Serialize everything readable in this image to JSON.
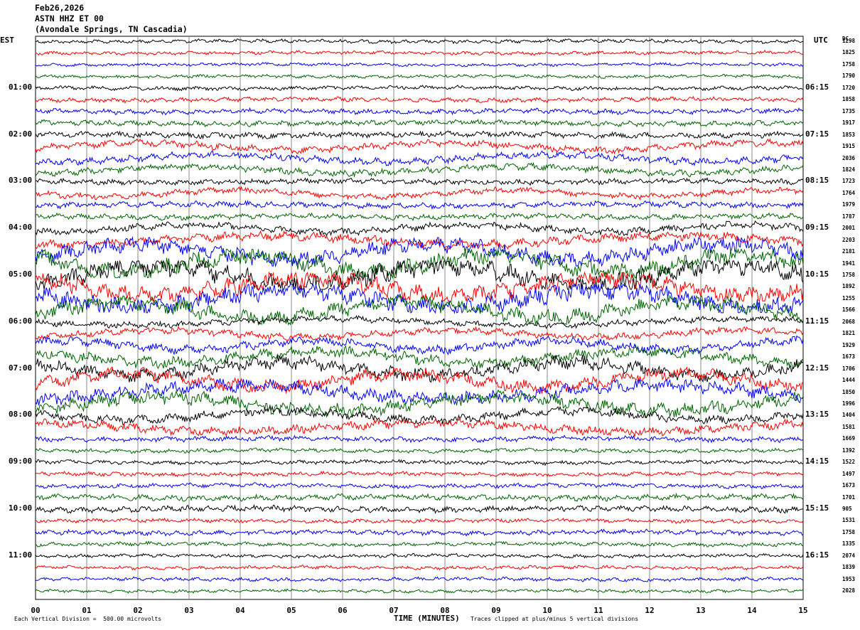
{
  "header": {
    "date": "Feb26,2026",
    "station": "ASTN HHZ ET 00",
    "location": "(Avondale Springs, TN Cascadia)"
  },
  "axes": {
    "left_tz": "EST",
    "right_tz": "UTC",
    "dc_label": "DC",
    "x_title": "TIME (MINUTES)",
    "footer_left": "Each Vertical Division =  500.00 microvolts",
    "footer_right": "Traces clipped at plus/minus 5 vertical divisions"
  },
  "chart_data": {
    "type": "line",
    "title": "ASTN HHZ ET 00",
    "xlabel": "TIME (MINUTES)",
    "xlim": [
      0,
      15
    ],
    "x_ticks": [
      "00",
      "01",
      "02",
      "03",
      "04",
      "05",
      "06",
      "07",
      "08",
      "09",
      "10",
      "11",
      "12",
      "13",
      "14",
      "15"
    ],
    "left_hour_labels": [
      "01:00",
      "02:00",
      "03:00",
      "04:00",
      "05:00",
      "06:00",
      "07:00",
      "08:00",
      "09:00",
      "10:00",
      "11:00"
    ],
    "right_hour_labels": [
      "06:15",
      "07:15",
      "08:15",
      "09:15",
      "10:15",
      "11:15",
      "12:15",
      "13:15",
      "14:15",
      "15:15",
      "16:15"
    ],
    "trace_colors": [
      "#000000",
      "#ff0000",
      "#0000ff",
      "#006400"
    ],
    "dc_offsets": [
      "1298",
      "1825",
      "1758",
      "1790",
      "1720",
      "1858",
      "1735",
      "1917",
      "1853",
      "1915",
      "2036",
      "1824",
      "1723",
      "1764",
      "1979",
      "1787",
      "2001",
      "2203",
      "2181",
      "1941",
      "1758",
      "1892",
      "1255",
      "1566",
      "2068",
      "1821",
      "1929",
      "1673",
      "1706",
      "1444",
      "1850",
      "1996",
      "1404",
      "1581",
      "1669",
      "1392",
      "1522",
      "1497",
      "1673",
      "1701",
      "905",
      "1531",
      "1758",
      "1335",
      "2074",
      "1839",
      "1953",
      "2028"
    ],
    "trace_amplitude_divisions": [
      0.8,
      0.8,
      0.7,
      0.7,
      0.9,
      1.0,
      1.1,
      1.2,
      1.3,
      1.6,
      1.6,
      1.5,
      1.2,
      1.4,
      1.3,
      1.2,
      1.6,
      2.0,
      3.5,
      4.0,
      4.5,
      4.0,
      4.0,
      3.5,
      1.4,
      1.5,
      2.0,
      2.5,
      3.0,
      3.0,
      3.0,
      3.0,
      2.0,
      2.0,
      1.2,
      0.9,
      0.9,
      0.9,
      1.0,
      1.3,
      1.3,
      0.9,
      1.1,
      0.9,
      0.8,
      0.8,
      0.8,
      0.7
    ],
    "units": "Each Vertical Division =  500.00 microvolts",
    "clip": "Traces clipped at plus/minus 5 vertical divisions"
  }
}
